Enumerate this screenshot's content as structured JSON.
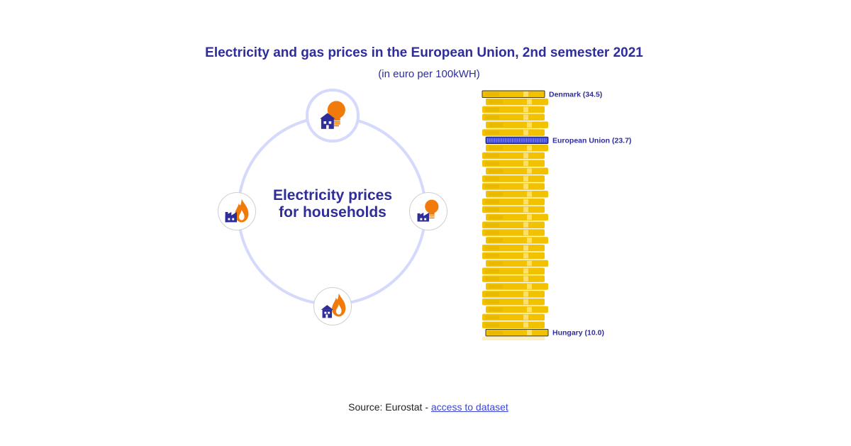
{
  "title": "Electricity and gas prices in the European Union, 2nd semester 2021",
  "subtitle": "(in euro per 100kWH)",
  "center_label": "Electricity prices for households",
  "selector_nodes": [
    {
      "name": "electricity-households",
      "icon": "house-bulb-icon",
      "active": true
    },
    {
      "name": "electricity-non-households",
      "icon": "factory-bulb-icon",
      "active": false
    },
    {
      "name": "gas-households",
      "icon": "house-flame-icon",
      "active": false
    },
    {
      "name": "gas-non-households",
      "icon": "factory-flame-icon",
      "active": false
    }
  ],
  "colors": {
    "title": "#2e2d9a",
    "coin": "#f2c200",
    "coin_light": "#ffe066",
    "coin_shade": "#d9a900",
    "eu_bar": "#3b44d6",
    "ring": "#d5d9fc",
    "icon_orange": "#f07a0a"
  },
  "source": {
    "prefix": "Source: Eurostat - ",
    "link_text": "access to dataset"
  },
  "chart_data": {
    "type": "bar",
    "orientation": "horizontal",
    "sorted": "descending",
    "categories": [
      "Denmark",
      "",
      "",
      "",
      "",
      "",
      "European Union",
      "",
      "",
      "",
      "",
      "",
      "",
      "",
      "",
      "",
      "",
      "",
      "",
      "",
      "",
      "",
      "",
      "",
      "",
      "",
      "",
      "",
      "",
      "",
      "",
      "Hungary"
    ],
    "values": [
      34.5,
      34.4,
      34.3,
      34.2,
      34.0,
      33.9,
      23.7,
      34.5,
      34.4,
      34.3,
      34.1,
      34.0,
      33.9,
      33.8,
      33.6,
      33.5,
      33.4,
      33.3,
      33.1,
      33.0,
      32.9,
      32.8,
      32.6,
      32.5,
      32.4,
      32.3,
      32.1,
      32.0,
      31.9,
      31.8,
      31.6,
      10.0
    ],
    "labels": [
      {
        "category": "Denmark",
        "text": "Denmark (34.5)"
      },
      {
        "category": "European Union",
        "text": "European Union (23.7)"
      },
      {
        "category": "Hungary",
        "text": "Hungary (10.0)"
      }
    ],
    "xlim": [
      0,
      35
    ]
  }
}
